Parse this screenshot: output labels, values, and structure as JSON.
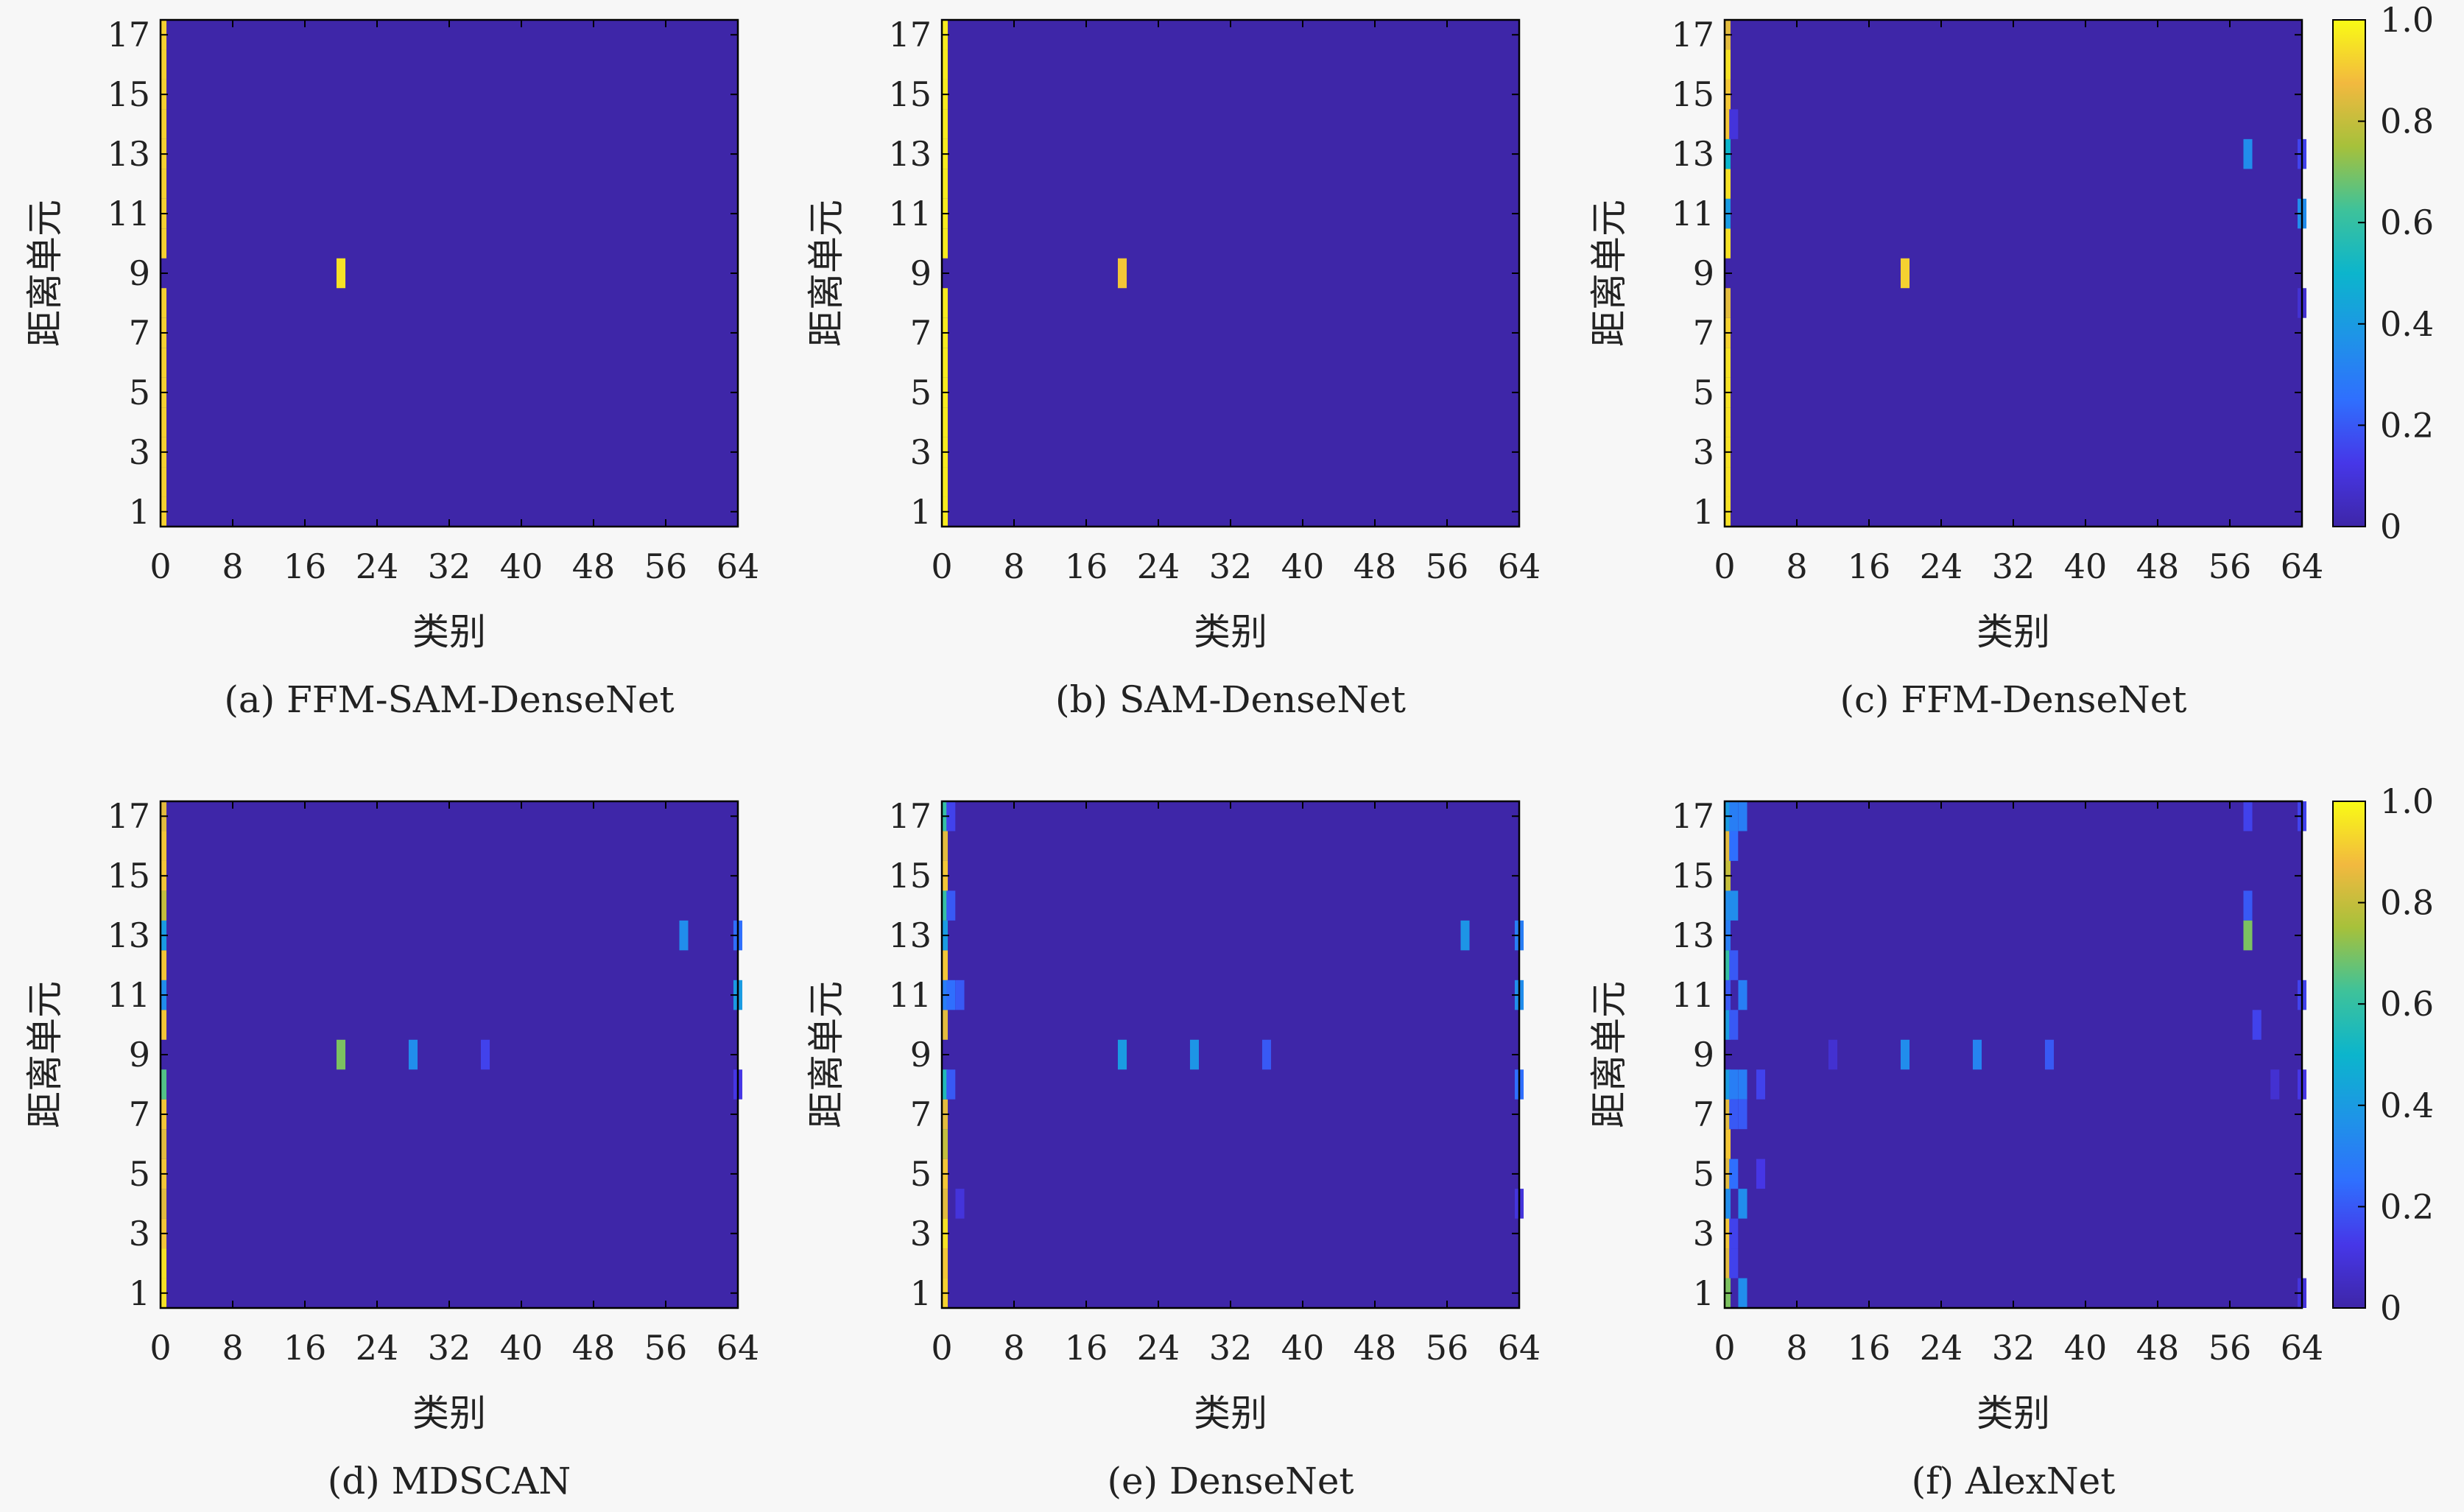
{
  "figure": {
    "colorbar_ticks": [
      "0",
      "0.2",
      "0.4",
      "0.6",
      "0.8",
      "1.0"
    ],
    "colors": {
      "background": "#f7f7f7",
      "base": "#3e26a8",
      "axis": "#000000"
    }
  },
  "chart_data": [
    {
      "type": "heatmap",
      "caption": "(a) FFM-SAM-DenseNet",
      "xlabel": "类别",
      "ylabel": "距离单元",
      "xticks": [
        0,
        8,
        16,
        24,
        32,
        40,
        48,
        56,
        64
      ],
      "yticks": [
        1,
        3,
        5,
        7,
        9,
        11,
        13,
        15,
        17
      ],
      "xlim": [
        0,
        64
      ],
      "ylim": [
        1,
        17
      ],
      "clim": [
        0,
        1
      ],
      "colormap": "parula",
      "cells": [
        {
          "x": 0,
          "y": 1,
          "v": 0.92
        },
        {
          "x": 0,
          "y": 2,
          "v": 0.92
        },
        {
          "x": 0,
          "y": 3,
          "v": 0.92
        },
        {
          "x": 0,
          "y": 4,
          "v": 0.92
        },
        {
          "x": 0,
          "y": 5,
          "v": 0.92
        },
        {
          "x": 0,
          "y": 6,
          "v": 0.92
        },
        {
          "x": 0,
          "y": 7,
          "v": 0.92
        },
        {
          "x": 0,
          "y": 8,
          "v": 0.92
        },
        {
          "x": 0,
          "y": 10,
          "v": 0.92
        },
        {
          "x": 0,
          "y": 11,
          "v": 0.92
        },
        {
          "x": 0,
          "y": 12,
          "v": 0.92
        },
        {
          "x": 0,
          "y": 13,
          "v": 0.92
        },
        {
          "x": 0,
          "y": 14,
          "v": 0.92
        },
        {
          "x": 0,
          "y": 15,
          "v": 0.92
        },
        {
          "x": 0,
          "y": 16,
          "v": 0.92
        },
        {
          "x": 0,
          "y": 17,
          "v": 0.92
        },
        {
          "x": 20,
          "y": 9,
          "v": 0.95
        }
      ]
    },
    {
      "type": "heatmap",
      "caption": "(b) SAM-DenseNet",
      "xlabel": "类别",
      "ylabel": "距离单元",
      "xticks": [
        0,
        8,
        16,
        24,
        32,
        40,
        48,
        56,
        64
      ],
      "yticks": [
        1,
        3,
        5,
        7,
        9,
        11,
        13,
        15,
        17
      ],
      "xlim": [
        0,
        64
      ],
      "ylim": [
        1,
        17
      ],
      "clim": [
        0,
        1
      ],
      "colormap": "parula",
      "cells": [
        {
          "x": 0,
          "y": 1,
          "v": 0.97
        },
        {
          "x": 0,
          "y": 2,
          "v": 0.97
        },
        {
          "x": 0,
          "y": 3,
          "v": 0.97
        },
        {
          "x": 0,
          "y": 4,
          "v": 0.97
        },
        {
          "x": 0,
          "y": 5,
          "v": 0.97
        },
        {
          "x": 0,
          "y": 6,
          "v": 0.97
        },
        {
          "x": 0,
          "y": 7,
          "v": 0.97
        },
        {
          "x": 0,
          "y": 8,
          "v": 0.97
        },
        {
          "x": 0,
          "y": 10,
          "v": 0.97
        },
        {
          "x": 0,
          "y": 11,
          "v": 0.97
        },
        {
          "x": 0,
          "y": 12,
          "v": 0.97
        },
        {
          "x": 0,
          "y": 13,
          "v": 0.97
        },
        {
          "x": 0,
          "y": 14,
          "v": 0.97
        },
        {
          "x": 0,
          "y": 15,
          "v": 0.97
        },
        {
          "x": 0,
          "y": 16,
          "v": 0.97
        },
        {
          "x": 0,
          "y": 17,
          "v": 0.97
        },
        {
          "x": 20,
          "y": 9,
          "v": 0.9
        }
      ]
    },
    {
      "type": "heatmap",
      "caption": "(c) FFM-DenseNet",
      "xlabel": "类别",
      "ylabel": "距离单元",
      "xticks": [
        0,
        8,
        16,
        24,
        32,
        40,
        48,
        56,
        64
      ],
      "yticks": [
        1,
        3,
        5,
        7,
        9,
        11,
        13,
        15,
        17
      ],
      "xlim": [
        0,
        64
      ],
      "ylim": [
        1,
        17
      ],
      "clim": [
        0,
        1
      ],
      "colormap": "parula",
      "colorbar": true,
      "cells": [
        {
          "x": 0,
          "y": 1,
          "v": 0.95
        },
        {
          "x": 0,
          "y": 2,
          "v": 0.95
        },
        {
          "x": 0,
          "y": 3,
          "v": 0.95
        },
        {
          "x": 0,
          "y": 4,
          "v": 0.95
        },
        {
          "x": 0,
          "y": 5,
          "v": 0.95
        },
        {
          "x": 0,
          "y": 6,
          "v": 0.95
        },
        {
          "x": 0,
          "y": 7,
          "v": 0.92
        },
        {
          "x": 0,
          "y": 8,
          "v": 0.85
        },
        {
          "x": 0,
          "y": 10,
          "v": 0.95
        },
        {
          "x": 0,
          "y": 11,
          "v": 0.4
        },
        {
          "x": 0,
          "y": 12,
          "v": 0.95
        },
        {
          "x": 0,
          "y": 13,
          "v": 0.5
        },
        {
          "x": 0,
          "y": 14,
          "v": 0.9
        },
        {
          "x": 0,
          "y": 15,
          "v": 0.9
        },
        {
          "x": 0,
          "y": 16,
          "v": 0.95
        },
        {
          "x": 0,
          "y": 17,
          "v": 0.85
        },
        {
          "x": 1,
          "y": 14,
          "v": 0.1
        },
        {
          "x": 20,
          "y": 9,
          "v": 0.92
        },
        {
          "x": 58,
          "y": 13,
          "v": 0.35
        },
        {
          "x": 64,
          "y": 13,
          "v": 0.15
        },
        {
          "x": 64,
          "y": 11,
          "v": 0.35
        },
        {
          "x": 64,
          "y": 8,
          "v": 0.08
        }
      ]
    },
    {
      "type": "heatmap",
      "caption": "(d) MDSCAN",
      "xlabel": "类别",
      "ylabel": "距离单元",
      "xticks": [
        0,
        8,
        16,
        24,
        32,
        40,
        48,
        56,
        64
      ],
      "yticks": [
        1,
        3,
        5,
        7,
        9,
        11,
        13,
        15,
        17
      ],
      "xlim": [
        0,
        64
      ],
      "ylim": [
        1,
        17
      ],
      "clim": [
        0,
        1
      ],
      "colormap": "parula",
      "cells": [
        {
          "x": 0,
          "y": 1,
          "v": 0.95
        },
        {
          "x": 0,
          "y": 2,
          "v": 0.95
        },
        {
          "x": 0,
          "y": 3,
          "v": 0.9
        },
        {
          "x": 0,
          "y": 4,
          "v": 0.85
        },
        {
          "x": 0,
          "y": 5,
          "v": 0.9
        },
        {
          "x": 0,
          "y": 6,
          "v": 0.85
        },
        {
          "x": 0,
          "y": 7,
          "v": 0.9
        },
        {
          "x": 0,
          "y": 8,
          "v": 0.65
        },
        {
          "x": 0,
          "y": 10,
          "v": 0.9
        },
        {
          "x": 0,
          "y": 11,
          "v": 0.35
        },
        {
          "x": 0,
          "y": 12,
          "v": 0.9
        },
        {
          "x": 0,
          "y": 13,
          "v": 0.4
        },
        {
          "x": 0,
          "y": 14,
          "v": 0.8
        },
        {
          "x": 0,
          "y": 15,
          "v": 0.9
        },
        {
          "x": 0,
          "y": 16,
          "v": 0.9
        },
        {
          "x": 0,
          "y": 17,
          "v": 0.85
        },
        {
          "x": 20,
          "y": 9,
          "v": 0.7
        },
        {
          "x": 28,
          "y": 9,
          "v": 0.35
        },
        {
          "x": 36,
          "y": 9,
          "v": 0.15
        },
        {
          "x": 58,
          "y": 13,
          "v": 0.35
        },
        {
          "x": 64,
          "y": 13,
          "v": 0.25
        },
        {
          "x": 64,
          "y": 11,
          "v": 0.4
        },
        {
          "x": 64,
          "y": 8,
          "v": 0.12
        }
      ]
    },
    {
      "type": "heatmap",
      "caption": "(e) DenseNet",
      "xlabel": "类别",
      "ylabel": "距离单元",
      "xticks": [
        0,
        8,
        16,
        24,
        32,
        40,
        48,
        56,
        64
      ],
      "yticks": [
        1,
        3,
        5,
        7,
        9,
        11,
        13,
        15,
        17
      ],
      "xlim": [
        0,
        64
      ],
      "ylim": [
        1,
        17
      ],
      "clim": [
        0,
        1
      ],
      "colormap": "parula",
      "cells": [
        {
          "x": 0,
          "y": 1,
          "v": 0.92
        },
        {
          "x": 0,
          "y": 2,
          "v": 0.9
        },
        {
          "x": 0,
          "y": 3,
          "v": 0.95
        },
        {
          "x": 0,
          "y": 4,
          "v": 0.85
        },
        {
          "x": 0,
          "y": 5,
          "v": 0.9
        },
        {
          "x": 0,
          "y": 6,
          "v": 0.8
        },
        {
          "x": 0,
          "y": 7,
          "v": 0.85
        },
        {
          "x": 0,
          "y": 8,
          "v": 0.55
        },
        {
          "x": 0,
          "y": 10,
          "v": 0.85
        },
        {
          "x": 0,
          "y": 11,
          "v": 0.3
        },
        {
          "x": 0,
          "y": 12,
          "v": 0.9
        },
        {
          "x": 0,
          "y": 13,
          "v": 0.4
        },
        {
          "x": 0,
          "y": 14,
          "v": 0.6
        },
        {
          "x": 0,
          "y": 15,
          "v": 0.9
        },
        {
          "x": 0,
          "y": 16,
          "v": 0.85
        },
        {
          "x": 0,
          "y": 17,
          "v": 0.6
        },
        {
          "x": 1,
          "y": 17,
          "v": 0.15
        },
        {
          "x": 1,
          "y": 14,
          "v": 0.2
        },
        {
          "x": 1,
          "y": 11,
          "v": 0.25
        },
        {
          "x": 2,
          "y": 11,
          "v": 0.2
        },
        {
          "x": 1,
          "y": 8,
          "v": 0.2
        },
        {
          "x": 2,
          "y": 4,
          "v": 0.1
        },
        {
          "x": 20,
          "y": 9,
          "v": 0.4
        },
        {
          "x": 28,
          "y": 9,
          "v": 0.38
        },
        {
          "x": 36,
          "y": 9,
          "v": 0.2
        },
        {
          "x": 58,
          "y": 13,
          "v": 0.38
        },
        {
          "x": 64,
          "y": 13,
          "v": 0.3
        },
        {
          "x": 64,
          "y": 11,
          "v": 0.35
        },
        {
          "x": 64,
          "y": 8,
          "v": 0.25
        },
        {
          "x": 64,
          "y": 4,
          "v": 0.1
        }
      ]
    },
    {
      "type": "heatmap",
      "caption": "(f) AlexNet",
      "xlabel": "类别",
      "ylabel": "距离单元",
      "xticks": [
        0,
        8,
        16,
        24,
        32,
        40,
        48,
        56,
        64
      ],
      "yticks": [
        1,
        3,
        5,
        7,
        9,
        11,
        13,
        15,
        17
      ],
      "xlim": [
        0,
        64
      ],
      "ylim": [
        1,
        17
      ],
      "clim": [
        0,
        1
      ],
      "colormap": "parula",
      "colorbar": true,
      "cells": [
        {
          "x": 0,
          "y": 1,
          "v": 0.7
        },
        {
          "x": 0,
          "y": 2,
          "v": 0.85
        },
        {
          "x": 0,
          "y": 3,
          "v": 0.9
        },
        {
          "x": 0,
          "y": 4,
          "v": 0.35
        },
        {
          "x": 0,
          "y": 5,
          "v": 0.85
        },
        {
          "x": 0,
          "y": 6,
          "v": 0.9
        },
        {
          "x": 0,
          "y": 7,
          "v": 0.85
        },
        {
          "x": 0,
          "y": 8,
          "v": 0.4
        },
        {
          "x": 0,
          "y": 10,
          "v": 0.4
        },
        {
          "x": 0,
          "y": 11,
          "v": 0.2
        },
        {
          "x": 0,
          "y": 12,
          "v": 0.6
        },
        {
          "x": 0,
          "y": 13,
          "v": 0.3
        },
        {
          "x": 0,
          "y": 14,
          "v": 0.35
        },
        {
          "x": 0,
          "y": 15,
          "v": 0.8
        },
        {
          "x": 0,
          "y": 16,
          "v": 0.85
        },
        {
          "x": 0,
          "y": 17,
          "v": 0.4
        },
        {
          "x": 1,
          "y": 17,
          "v": 0.3
        },
        {
          "x": 2,
          "y": 17,
          "v": 0.3
        },
        {
          "x": 1,
          "y": 16,
          "v": 0.25
        },
        {
          "x": 1,
          "y": 14,
          "v": 0.35
        },
        {
          "x": 1,
          "y": 12,
          "v": 0.2
        },
        {
          "x": 2,
          "y": 11,
          "v": 0.3
        },
        {
          "x": 1,
          "y": 10,
          "v": 0.2
        },
        {
          "x": 1,
          "y": 8,
          "v": 0.3
        },
        {
          "x": 2,
          "y": 8,
          "v": 0.3
        },
        {
          "x": 1,
          "y": 7,
          "v": 0.2
        },
        {
          "x": 2,
          "y": 7,
          "v": 0.2
        },
        {
          "x": 4,
          "y": 8,
          "v": 0.15
        },
        {
          "x": 1,
          "y": 5,
          "v": 0.25
        },
        {
          "x": 2,
          "y": 4,
          "v": 0.35
        },
        {
          "x": 4,
          "y": 5,
          "v": 0.12
        },
        {
          "x": 1,
          "y": 3,
          "v": 0.15
        },
        {
          "x": 2,
          "y": 1,
          "v": 0.35
        },
        {
          "x": 1,
          "y": 2,
          "v": 0.15
        },
        {
          "x": 12,
          "y": 9,
          "v": 0.08
        },
        {
          "x": 20,
          "y": 9,
          "v": 0.35
        },
        {
          "x": 28,
          "y": 9,
          "v": 0.32
        },
        {
          "x": 36,
          "y": 9,
          "v": 0.2
        },
        {
          "x": 58,
          "y": 17,
          "v": 0.15
        },
        {
          "x": 58,
          "y": 14,
          "v": 0.2
        },
        {
          "x": 58,
          "y": 13,
          "v": 0.7
        },
        {
          "x": 59,
          "y": 10,
          "v": 0.15
        },
        {
          "x": 61,
          "y": 8,
          "v": 0.08
        },
        {
          "x": 64,
          "y": 17,
          "v": 0.15
        },
        {
          "x": 64,
          "y": 11,
          "v": 0.15
        },
        {
          "x": 64,
          "y": 8,
          "v": 0.12
        },
        {
          "x": 64,
          "y": 1,
          "v": 0.1
        }
      ]
    }
  ]
}
